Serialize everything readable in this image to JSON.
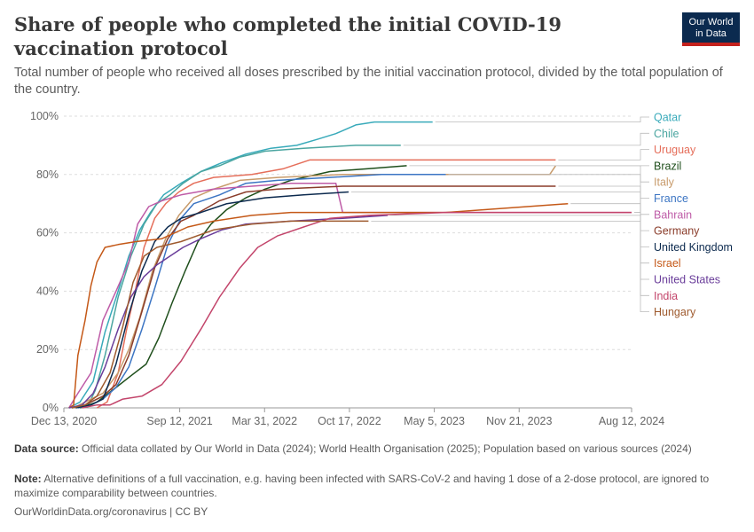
{
  "header": {
    "title": "Share of people who completed the initial COVID-19 vaccination protocol",
    "subtitle": "Total number of people who received all doses prescribed by the initial vaccination protocol, divided by the total population of the country."
  },
  "logo": {
    "line1": "Our World",
    "line2": "in Data",
    "bg_color": "#0b2a4f",
    "accent_color": "#c4211d"
  },
  "footer": {
    "source_label": "Data source:",
    "source_text": "Official data collated by Our World in Data (2024); World Health Organisation (2025); Population based on various sources (2024)",
    "note_label": "Note:",
    "note_text": "Alternative definitions of a full vaccination, e.g. having been infected with SARS-CoV-2 and having 1 dose of a 2-dose protocol, are ignored to maximize comparability between countries.",
    "credit": "OurWorldinData.org/coronavirus | CC BY"
  },
  "chart_data": {
    "type": "line",
    "title": "Share of people who completed the initial COVID-19 vaccination protocol",
    "ylabel": "",
    "xlabel": "",
    "x_ticks": [
      "Dec 13, 2020",
      "Sep 12, 2021",
      "Mar 31, 2022",
      "Oct 17, 2022",
      "May 5, 2023",
      "Nov 21, 2023",
      "Aug 12, 2024"
    ],
    "y_ticks": [
      "0%",
      "20%",
      "40%",
      "60%",
      "80%",
      "100%"
    ],
    "x_range": [
      "2020-12-13",
      "2024-08-12"
    ],
    "ylim": [
      0,
      100
    ],
    "y_unit": "%",
    "grid": "horizontal dashed",
    "legend_placement": "right, labels at line ends",
    "series": [
      {
        "name": "Qatar",
        "color": "#38aaba",
        "points": [
          [
            "2020-12-25",
            0
          ],
          [
            "2021-01-20",
            2
          ],
          [
            "2021-02-20",
            9
          ],
          [
            "2021-03-20",
            26
          ],
          [
            "2021-04-20",
            40
          ],
          [
            "2021-05-15",
            52
          ],
          [
            "2021-06-10",
            61
          ],
          [
            "2021-07-05",
            67
          ],
          [
            "2021-08-05",
            73
          ],
          [
            "2021-09-15",
            77
          ],
          [
            "2021-11-01",
            81
          ],
          [
            "2021-12-20",
            84
          ],
          [
            "2022-02-15",
            87
          ],
          [
            "2022-04-15",
            89
          ],
          [
            "2022-06-15",
            90
          ],
          [
            "2022-08-01",
            92
          ],
          [
            "2022-09-15",
            94
          ],
          [
            "2022-11-01",
            97
          ],
          [
            "2022-12-15",
            98
          ],
          [
            "2023-05-01",
            98
          ]
        ]
      },
      {
        "name": "Chile",
        "color": "#4aa5a0",
        "points": [
          [
            "2021-02-05",
            0
          ],
          [
            "2021-02-25",
            6
          ],
          [
            "2021-03-20",
            18
          ],
          [
            "2021-04-20",
            38
          ],
          [
            "2021-05-20",
            52
          ],
          [
            "2021-06-20",
            63
          ],
          [
            "2021-07-20",
            70
          ],
          [
            "2021-08-20",
            73
          ],
          [
            "2021-09-20",
            77
          ],
          [
            "2021-11-01",
            81
          ],
          [
            "2021-12-15",
            83
          ],
          [
            "2022-02-01",
            86
          ],
          [
            "2022-04-01",
            88
          ],
          [
            "2022-07-01",
            89
          ],
          [
            "2022-11-01",
            90
          ],
          [
            "2023-02-15",
            90
          ]
        ]
      },
      {
        "name": "Uruguay",
        "color": "#e56e5a",
        "points": [
          [
            "2021-03-01",
            0
          ],
          [
            "2021-03-25",
            2
          ],
          [
            "2021-04-20",
            12
          ],
          [
            "2021-05-10",
            27
          ],
          [
            "2021-05-30",
            40
          ],
          [
            "2021-06-20",
            55
          ],
          [
            "2021-07-15",
            65
          ],
          [
            "2021-08-10",
            70
          ],
          [
            "2021-09-10",
            74
          ],
          [
            "2021-10-15",
            77
          ],
          [
            "2021-12-01",
            79
          ],
          [
            "2022-03-01",
            80
          ],
          [
            "2022-05-15",
            82
          ],
          [
            "2022-07-15",
            85
          ],
          [
            "2022-12-01",
            85
          ],
          [
            "2024-02-15",
            85
          ]
        ]
      },
      {
        "name": "Brazil",
        "color": "#1f4f1c",
        "points": [
          [
            "2021-01-20",
            0
          ],
          [
            "2021-03-01",
            2
          ],
          [
            "2021-04-15",
            7
          ],
          [
            "2021-05-20",
            11
          ],
          [
            "2021-06-25",
            15
          ],
          [
            "2021-07-25",
            24
          ],
          [
            "2021-08-25",
            36
          ],
          [
            "2021-09-25",
            47
          ],
          [
            "2021-10-25",
            57
          ],
          [
            "2021-11-25",
            63
          ],
          [
            "2022-01-01",
            68
          ],
          [
            "2022-02-15",
            72
          ],
          [
            "2022-04-01",
            75
          ],
          [
            "2022-06-01",
            78
          ],
          [
            "2022-09-01",
            81
          ],
          [
            "2022-12-01",
            82
          ],
          [
            "2023-03-01",
            83
          ]
        ]
      },
      {
        "name": "Italy",
        "color": "#c89b6b",
        "points": [
          [
            "2021-01-05",
            0
          ],
          [
            "2021-02-01",
            2
          ],
          [
            "2021-03-15",
            5
          ],
          [
            "2021-04-20",
            12
          ],
          [
            "2021-05-15",
            20
          ],
          [
            "2021-06-10",
            31
          ],
          [
            "2021-07-10",
            47
          ],
          [
            "2021-08-10",
            58
          ],
          [
            "2021-09-10",
            66
          ],
          [
            "2021-10-15",
            72
          ],
          [
            "2021-12-01",
            75
          ],
          [
            "2022-02-01",
            78
          ],
          [
            "2022-05-01",
            79
          ],
          [
            "2022-10-01",
            80
          ],
          [
            "2023-06-01",
            80
          ],
          [
            "2023-11-01",
            80
          ],
          [
            "2024-02-01",
            80
          ],
          [
            "2024-02-15",
            83
          ]
        ]
      },
      {
        "name": "France",
        "color": "#3c75c3",
        "points": [
          [
            "2021-01-15",
            0
          ],
          [
            "2021-02-15",
            1
          ],
          [
            "2021-03-15",
            3
          ],
          [
            "2021-04-15",
            7
          ],
          [
            "2021-05-15",
            14
          ],
          [
            "2021-06-15",
            27
          ],
          [
            "2021-07-15",
            41
          ],
          [
            "2021-08-15",
            56
          ],
          [
            "2021-09-15",
            65
          ],
          [
            "2021-10-15",
            70
          ],
          [
            "2021-12-15",
            73
          ],
          [
            "2022-02-15",
            77
          ],
          [
            "2022-05-01",
            78
          ],
          [
            "2022-09-01",
            79
          ],
          [
            "2023-01-01",
            80
          ],
          [
            "2023-06-01",
            80
          ]
        ]
      },
      {
        "name": "Bahrain",
        "color": "#be5ba7",
        "points": [
          [
            "2020-12-25",
            0
          ],
          [
            "2021-01-15",
            5
          ],
          [
            "2021-02-15",
            12
          ],
          [
            "2021-03-15",
            30
          ],
          [
            "2021-04-15",
            40
          ],
          [
            "2021-05-15",
            50
          ],
          [
            "2021-06-05",
            63
          ],
          [
            "2021-07-01",
            69
          ],
          [
            "2021-08-01",
            71
          ],
          [
            "2021-09-15",
            73
          ],
          [
            "2021-12-01",
            75
          ],
          [
            "2022-03-01",
            76
          ],
          [
            "2022-06-01",
            77
          ],
          [
            "2022-09-15",
            77
          ],
          [
            "2022-10-01",
            67
          ],
          [
            "2023-06-01",
            67
          ],
          [
            "2024-08-12",
            67
          ]
        ]
      },
      {
        "name": "Germany",
        "color": "#8a3c2a",
        "points": [
          [
            "2021-01-01",
            0
          ],
          [
            "2021-02-01",
            1
          ],
          [
            "2021-03-15",
            4
          ],
          [
            "2021-04-15",
            8
          ],
          [
            "2021-05-15",
            18
          ],
          [
            "2021-06-15",
            33
          ],
          [
            "2021-07-15",
            48
          ],
          [
            "2021-08-15",
            58
          ],
          [
            "2021-09-15",
            64
          ],
          [
            "2021-10-15",
            66
          ],
          [
            "2021-12-15",
            71
          ],
          [
            "2022-02-15",
            74
          ],
          [
            "2022-05-01",
            75
          ],
          [
            "2022-10-01",
            76
          ],
          [
            "2023-06-01",
            76
          ],
          [
            "2024-02-15",
            76
          ]
        ]
      },
      {
        "name": "United Kingdom",
        "color": "#0c2a4e",
        "points": [
          [
            "2021-01-10",
            0
          ],
          [
            "2021-02-15",
            1
          ],
          [
            "2021-03-15",
            3
          ],
          [
            "2021-04-15",
            15
          ],
          [
            "2021-05-15",
            32
          ],
          [
            "2021-06-15",
            47
          ],
          [
            "2021-07-15",
            57
          ],
          [
            "2021-08-15",
            62
          ],
          [
            "2021-09-15",
            65
          ],
          [
            "2021-11-01",
            67
          ],
          [
            "2022-01-01",
            70
          ],
          [
            "2022-04-01",
            72
          ],
          [
            "2022-07-01",
            73
          ],
          [
            "2022-10-15",
            74
          ]
        ]
      },
      {
        "name": "Israel",
        "color": "#c45817",
        "points": [
          [
            "2020-12-25",
            0
          ],
          [
            "2021-01-05",
            1
          ],
          [
            "2021-01-15",
            18
          ],
          [
            "2021-02-01",
            30
          ],
          [
            "2021-02-15",
            42
          ],
          [
            "2021-03-01",
            50
          ],
          [
            "2021-03-20",
            55
          ],
          [
            "2021-04-20",
            56
          ],
          [
            "2021-06-01",
            57
          ],
          [
            "2021-08-01",
            58
          ],
          [
            "2021-10-01",
            62
          ],
          [
            "2021-12-01",
            64
          ],
          [
            "2022-03-01",
            66
          ],
          [
            "2022-06-01",
            67
          ],
          [
            "2023-01-01",
            67
          ],
          [
            "2023-06-01",
            67
          ],
          [
            "2024-03-15",
            70
          ]
        ]
      },
      {
        "name": "United States",
        "color": "#6a3d9a",
        "points": [
          [
            "2020-12-25",
            0
          ],
          [
            "2021-01-25",
            1
          ],
          [
            "2021-02-20",
            5
          ],
          [
            "2021-03-20",
            14
          ],
          [
            "2021-04-20",
            27
          ],
          [
            "2021-05-20",
            38
          ],
          [
            "2021-06-20",
            45
          ],
          [
            "2021-07-20",
            49
          ],
          [
            "2021-08-20",
            52
          ],
          [
            "2021-09-20",
            55
          ],
          [
            "2021-11-01",
            58
          ],
          [
            "2021-12-20",
            61
          ],
          [
            "2022-02-15",
            63
          ],
          [
            "2022-06-01",
            64
          ],
          [
            "2022-10-01",
            65
          ],
          [
            "2023-01-15",
            66
          ]
        ]
      },
      {
        "name": "India",
        "color": "#c3456b",
        "points": [
          [
            "2021-01-25",
            0
          ],
          [
            "2021-03-01",
            1
          ],
          [
            "2021-04-01",
            1
          ],
          [
            "2021-05-01",
            3
          ],
          [
            "2021-06-15",
            4
          ],
          [
            "2021-08-01",
            8
          ],
          [
            "2021-09-15",
            16
          ],
          [
            "2021-11-01",
            27
          ],
          [
            "2021-12-15",
            38
          ],
          [
            "2022-02-01",
            48
          ],
          [
            "2022-03-15",
            55
          ],
          [
            "2022-05-01",
            59
          ],
          [
            "2022-07-01",
            62
          ],
          [
            "2022-09-01",
            65
          ],
          [
            "2022-12-01",
            66
          ],
          [
            "2023-06-01",
            67
          ],
          [
            "2024-08-12",
            67
          ]
        ]
      },
      {
        "name": "Hungary",
        "color": "#9e5a2e",
        "points": [
          [
            "2021-01-01",
            0
          ],
          [
            "2021-02-01",
            1
          ],
          [
            "2021-03-01",
            4
          ],
          [
            "2021-04-01",
            12
          ],
          [
            "2021-05-01",
            28
          ],
          [
            "2021-05-25",
            43
          ],
          [
            "2021-06-20",
            52
          ],
          [
            "2021-07-20",
            55
          ],
          [
            "2021-09-15",
            57
          ],
          [
            "2021-12-01",
            61
          ],
          [
            "2022-03-01",
            63
          ],
          [
            "2022-06-01",
            64
          ],
          [
            "2022-12-01",
            64
          ]
        ]
      }
    ]
  }
}
